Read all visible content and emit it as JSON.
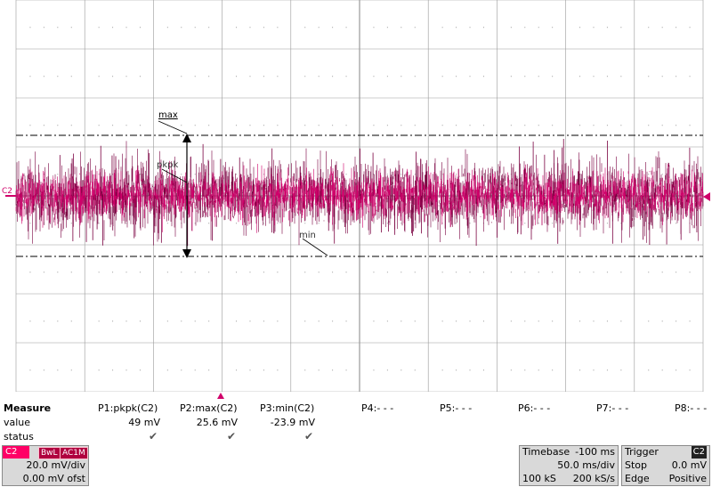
{
  "colors": {
    "trace": "#d0006a",
    "trace_dark": "#7a0040",
    "channel": "#ff0066",
    "grid": "#9a9a9a"
  },
  "waveform": {
    "channel_label": "C2",
    "markers": {
      "max": "max",
      "pkpk": "pkpk",
      "min": "min"
    }
  },
  "measure": {
    "title": "Measure",
    "row_labels": {
      "value": "value",
      "status": "status"
    },
    "params": [
      {
        "name": "P1:pkpk(C2)",
        "value": "49 mV",
        "status": "check"
      },
      {
        "name": "P2:max(C2)",
        "value": "25.6 mV",
        "status": "check"
      },
      {
        "name": "P3:min(C2)",
        "value": "-23.9 mV",
        "status": "check"
      },
      {
        "name": "P4:- - -",
        "value": "",
        "status": ""
      },
      {
        "name": "P5:- - -",
        "value": "",
        "status": ""
      },
      {
        "name": "P6:- - -",
        "value": "",
        "status": ""
      },
      {
        "name": "P7:- - -",
        "value": "",
        "status": ""
      },
      {
        "name": "P8:- - -",
        "value": "",
        "status": ""
      }
    ]
  },
  "channel": {
    "name": "C2",
    "tags": [
      "BwL",
      "AC1M"
    ],
    "volts_div": "20.0 mV/div",
    "offset": "0.00 mV ofst"
  },
  "timebase": {
    "title": "Timebase",
    "delay": "-100 ms",
    "time_div": "50.0 ms/div",
    "samples": "100 kS",
    "rate": "200 kS/s"
  },
  "trigger": {
    "title": "Trigger",
    "channel": "C2",
    "mode": "Stop",
    "level": "0.0 mV",
    "type": "Edge",
    "slope": "Positive"
  }
}
